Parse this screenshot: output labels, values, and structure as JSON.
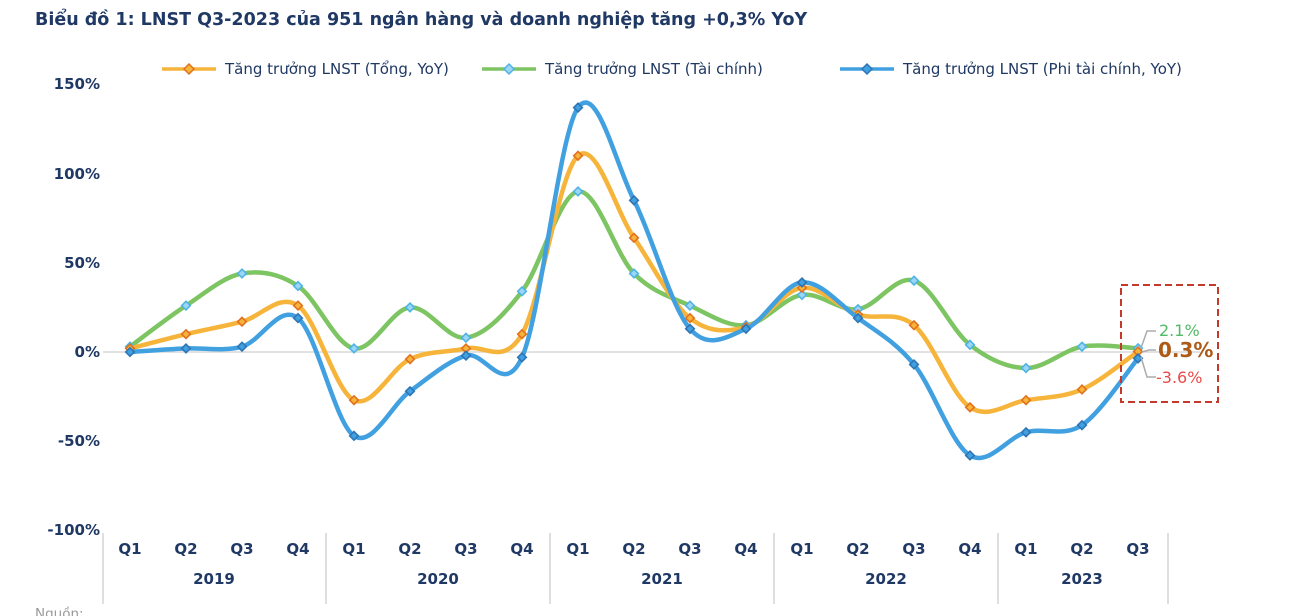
{
  "page": {
    "title": "Biểu đồ 1: LNST Q3-2023 của 951 ngân hàng và doanh nghiệp tăng +0,3% YoY",
    "source_clipped": "Nguồn: …"
  },
  "colors": {
    "title_and_axis_text": "#1F3864",
    "zero_gridline": "#D8D8D8",
    "axis_separator": "#BFBFBF",
    "callout_line": "#ABABAB",
    "highlight_box": "#C5392B"
  },
  "chart_data": {
    "type": "line",
    "smooth": true,
    "title": "Biểu đồ 1: LNST Q3-2023 của 951 ngân hàng và doanh nghiệp tăng +0,3% YoY",
    "ylabel": "",
    "xlabel": "",
    "ylim": [
      -100,
      150
    ],
    "grid": "zero-line-only",
    "legend_position": "top",
    "y_ticks": [
      {
        "label": "150%",
        "value": 150
      },
      {
        "label": "100%",
        "value": 100
      },
      {
        "label": "50%",
        "value": 50
      },
      {
        "label": "0%",
        "value": 0
      },
      {
        "label": "-50%",
        "value": -50
      },
      {
        "label": "-100%",
        "value": -100
      }
    ],
    "x_groups": [
      {
        "year": "2019",
        "quarters": [
          "Q1",
          "Q2",
          "Q3",
          "Q4"
        ]
      },
      {
        "year": "2020",
        "quarters": [
          "Q1",
          "Q2",
          "Q3",
          "Q4"
        ]
      },
      {
        "year": "2021",
        "quarters": [
          "Q1",
          "Q2",
          "Q3",
          "Q4"
        ]
      },
      {
        "year": "2022",
        "quarters": [
          "Q1",
          "Q2",
          "Q3",
          "Q4"
        ]
      },
      {
        "year": "2023",
        "quarters": [
          "Q1",
          "Q2",
          "Q3"
        ]
      }
    ],
    "series": [
      {
        "name": "Tăng trưởng LNST (Tổng, YoY)",
        "color": "#F6B43B",
        "marker_color": "#E2711D",
        "values": [
          2,
          10,
          17,
          26,
          -27,
          -4,
          2,
          10,
          110,
          64,
          19,
          14,
          36,
          21,
          15,
          -31,
          -27,
          -21,
          0.3
        ]
      },
      {
        "name": "Tăng trưởng LNST (Tài chính)",
        "color": "#7DC462",
        "marker_color": "#4FB3E6",
        "marker_fill": "#9BD7F5",
        "values": [
          3,
          26,
          44,
          37,
          2,
          25,
          8,
          34,
          90,
          44,
          26,
          15,
          32,
          24,
          40,
          4,
          -9,
          3,
          2.1
        ]
      },
      {
        "name": "Tăng trưởng LNST (Phi tài chính, YoY)",
        "color": "#41A0E0",
        "marker_color": "#2E75B6",
        "values": [
          0,
          2,
          3,
          19,
          -47,
          -22,
          -2,
          -3,
          137,
          85,
          13,
          13,
          39,
          19,
          -7,
          -58,
          -45,
          -41,
          -3.6
        ]
      }
    ],
    "annotations": [
      {
        "label": "2.1%",
        "color": "#53B966",
        "bold": false,
        "series": "Tài chính"
      },
      {
        "label": "0.3%",
        "color": "#AE5A17",
        "bold": true,
        "series": "Tổng"
      },
      {
        "label": "-3.6%",
        "color": "#E94B4B",
        "bold": false,
        "series": "Phi tài chính"
      }
    ],
    "highlight_box_note": "last data point Q3-2023 highlighted with red dashed rectangle"
  }
}
